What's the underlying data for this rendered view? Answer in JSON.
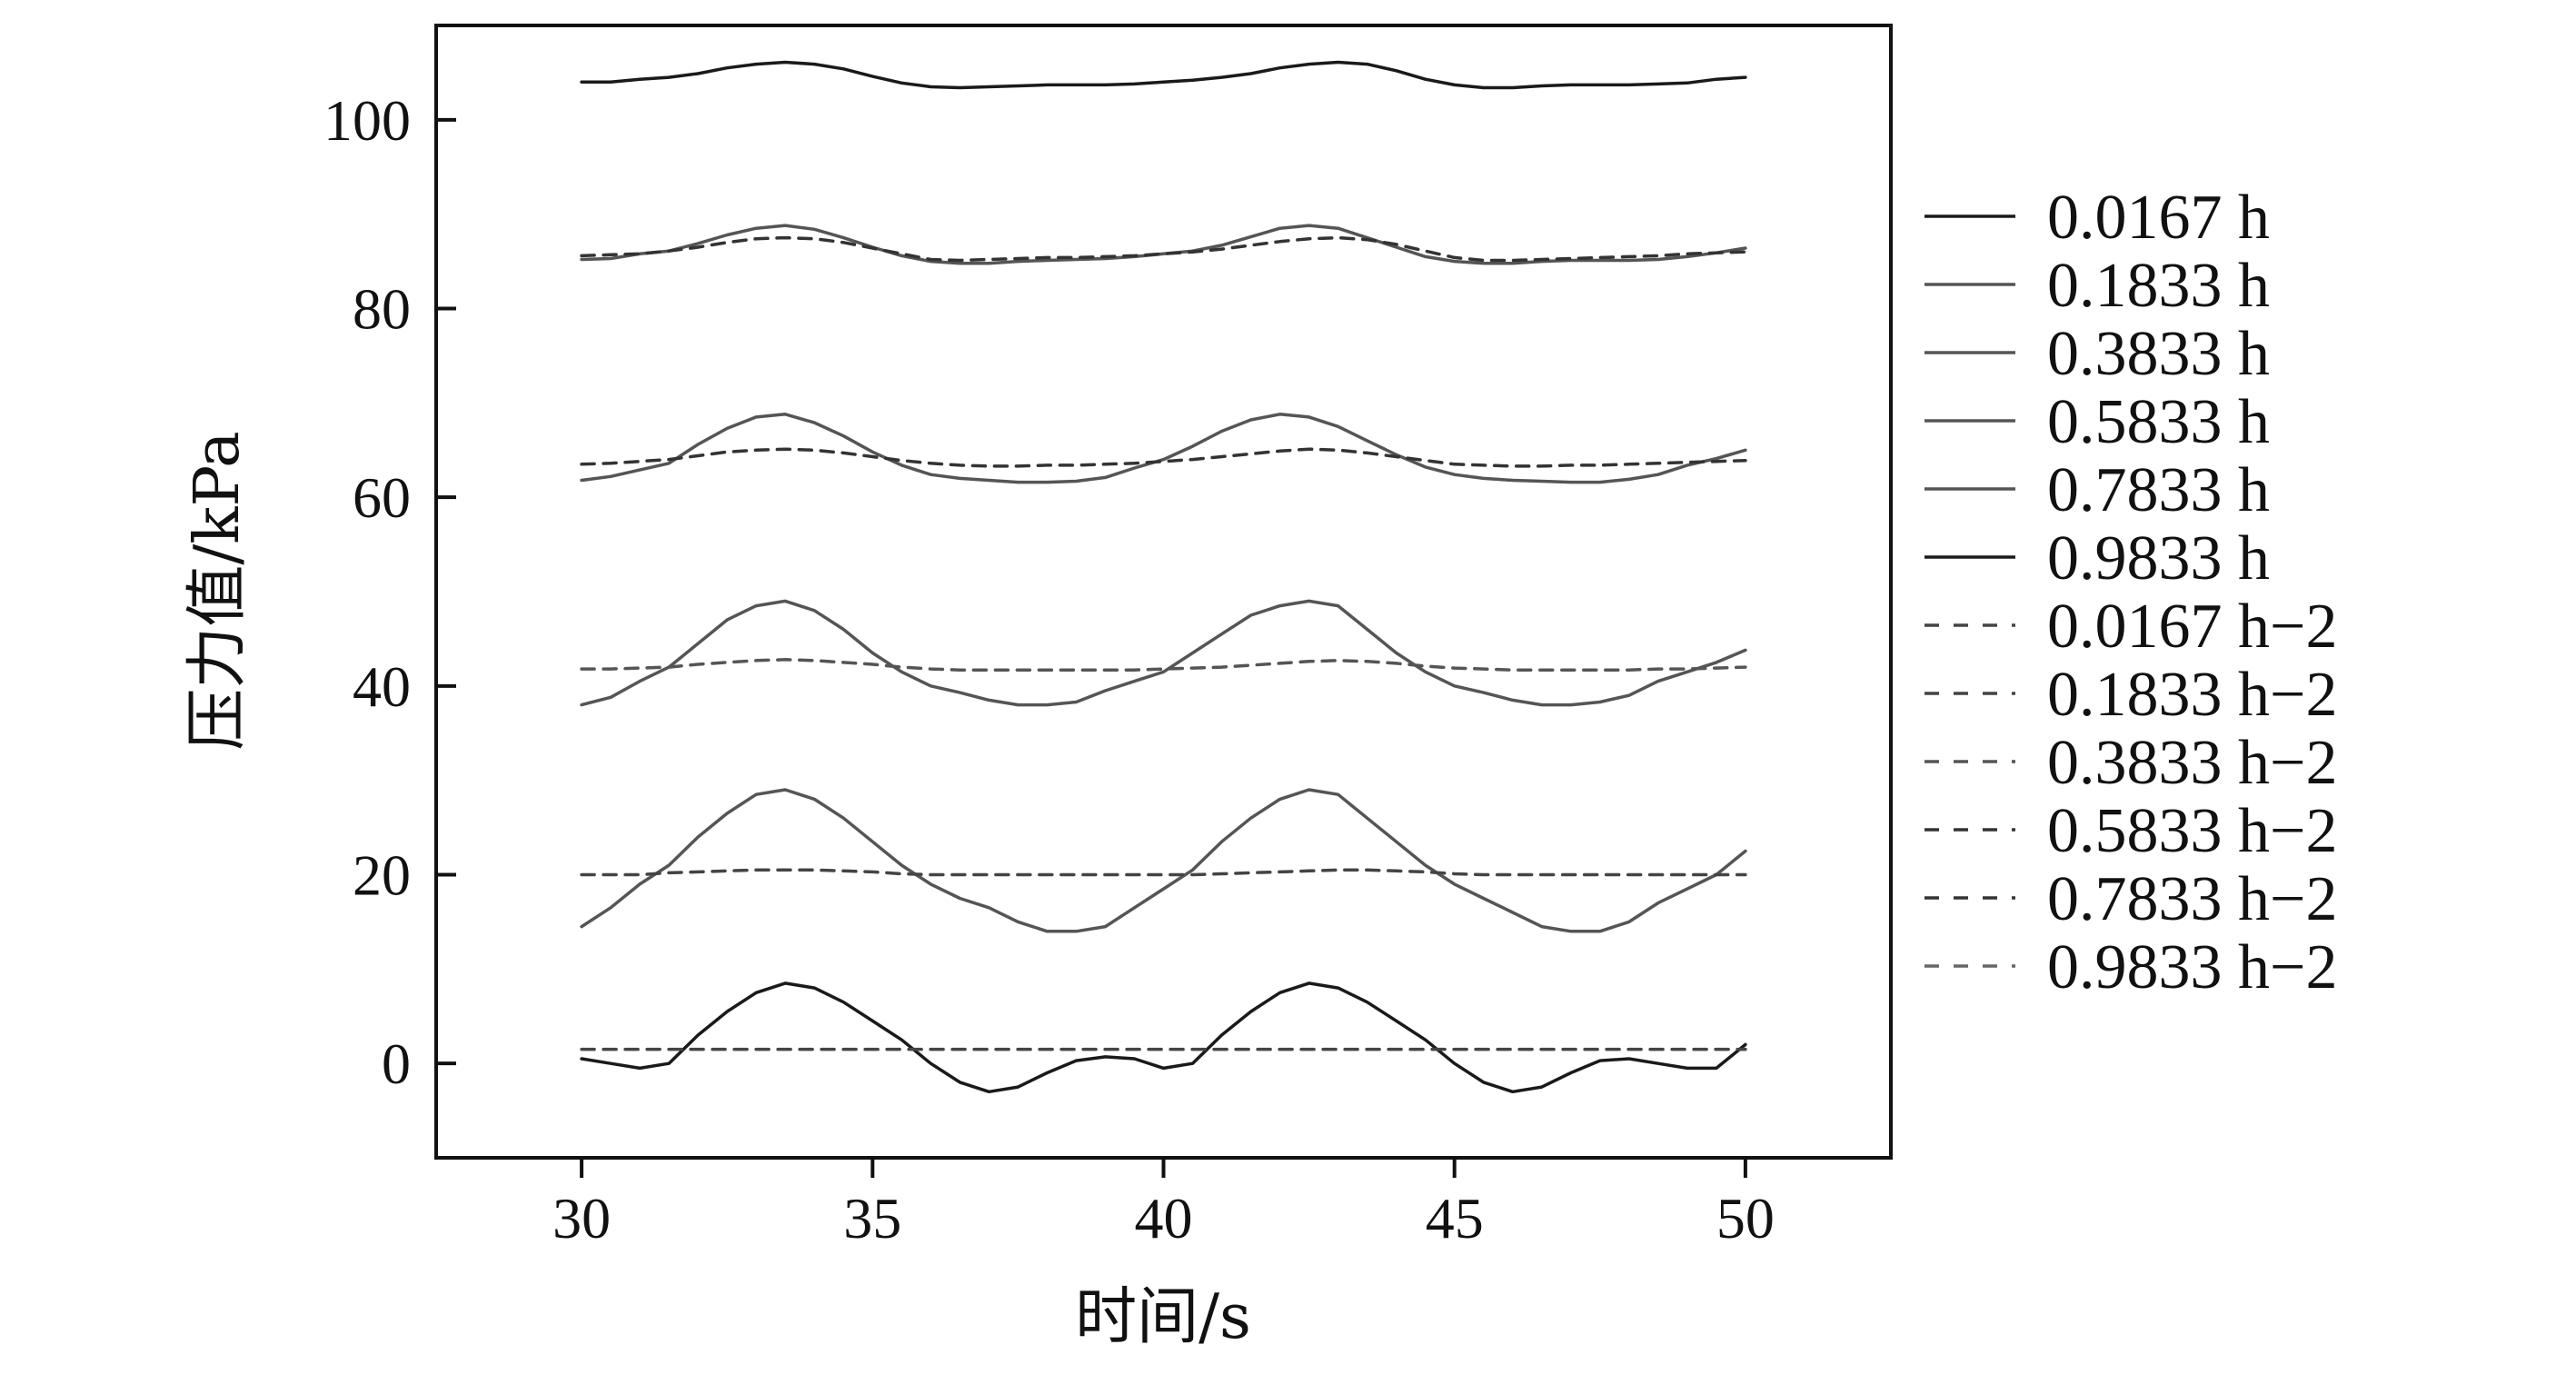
{
  "chart_data": {
    "type": "line",
    "title": "",
    "xlabel": "时间/s",
    "ylabel": "压力值/kPa",
    "xlim": [
      27.5,
      52.5
    ],
    "ylim": [
      -10,
      110
    ],
    "xticks": [
      30,
      35,
      40,
      45,
      50
    ],
    "yticks": [
      0,
      20,
      40,
      60,
      80,
      100
    ],
    "xtick_labels": [
      "30",
      "35",
      "40",
      "45",
      "50"
    ],
    "ytick_labels": [
      "0",
      "20",
      "40",
      "60",
      "80",
      "100"
    ],
    "grid": false,
    "legend_position": "outside-right",
    "x": [
      30,
      30.5,
      31,
      31.5,
      32,
      32.5,
      33,
      33.5,
      34,
      34.5,
      35,
      35.5,
      36,
      36.5,
      37,
      37.5,
      38,
      38.5,
      39,
      39.5,
      40,
      40.5,
      41,
      41.5,
      42,
      42.5,
      43,
      43.5,
      44,
      44.5,
      45,
      45.5,
      46,
      46.5,
      47,
      47.5,
      48,
      48.5,
      49,
      49.5,
      50
    ],
    "series": [
      {
        "name": "0.0167 h",
        "style": "solid",
        "color": "#1a1a1a",
        "values": [
          0.5,
          0,
          -0.5,
          0,
          3,
          5.5,
          7.5,
          8.5,
          8,
          6.5,
          4.5,
          2.5,
          0,
          -2,
          -3,
          -2.5,
          -1,
          0.3,
          0.7,
          0.5,
          -0.5,
          0,
          3,
          5.5,
          7.5,
          8.5,
          8,
          6.5,
          4.5,
          2.5,
          0,
          -2,
          -3,
          -2.5,
          -1,
          0.3,
          0.5,
          0,
          -0.5,
          -0.5,
          2
        ]
      },
      {
        "name": "0.1833 h",
        "style": "solid",
        "color": "#555555",
        "values": [
          14.5,
          16.5,
          19,
          21,
          24,
          26.5,
          28.5,
          29,
          28,
          26,
          23.5,
          21,
          19,
          17.5,
          16.5,
          15,
          14,
          14,
          14.5,
          16.5,
          18.5,
          20.5,
          23.5,
          26,
          28,
          29,
          28.5,
          26,
          23.5,
          21,
          19,
          17.5,
          16,
          14.5,
          14,
          14,
          15,
          17,
          18.5,
          20,
          22.5
        ]
      },
      {
        "name": "0.3833 h",
        "style": "solid",
        "color": "#555555",
        "values": [
          38,
          38.8,
          40.5,
          42,
          44.5,
          47,
          48.5,
          49,
          48,
          46,
          43.5,
          41.5,
          40,
          39.3,
          38.5,
          38,
          38,
          38.3,
          39.5,
          40.5,
          41.5,
          43.5,
          45.5,
          47.5,
          48.5,
          49,
          48.5,
          46,
          43.5,
          41.5,
          40,
          39.3,
          38.5,
          38,
          38,
          38.3,
          39,
          40.5,
          41.5,
          42.5,
          43.8
        ]
      },
      {
        "name": "0.5833 h",
        "style": "solid",
        "color": "#555555",
        "values": [
          61.8,
          62.2,
          62.9,
          63.6,
          65.6,
          67.3,
          68.5,
          68.8,
          67.9,
          66.5,
          64.8,
          63.4,
          62.4,
          62,
          61.8,
          61.6,
          61.6,
          61.7,
          62.1,
          63.1,
          64,
          65.4,
          67,
          68.2,
          68.8,
          68.5,
          67.5,
          66,
          64.5,
          63.2,
          62.4,
          62,
          61.8,
          61.7,
          61.6,
          61.6,
          61.9,
          62.4,
          63.4,
          64.1,
          65
        ]
      },
      {
        "name": "0.7833 h",
        "style": "solid",
        "color": "#555555",
        "values": [
          85.2,
          85.3,
          85.8,
          86.1,
          86.9,
          87.8,
          88.5,
          88.8,
          88.4,
          87.5,
          86.5,
          85.6,
          85,
          84.8,
          84.8,
          85,
          85.1,
          85.2,
          85.3,
          85.5,
          85.8,
          86.1,
          86.7,
          87.6,
          88.5,
          88.8,
          88.5,
          87.5,
          86.5,
          85.5,
          85,
          84.8,
          84.8,
          85,
          85.1,
          85.1,
          85.1,
          85.2,
          85.5,
          85.9,
          86.4
        ]
      },
      {
        "name": "0.9833 h",
        "style": "solid",
        "color": "#1a1a1a",
        "values": [
          104,
          104,
          104.3,
          104.5,
          104.9,
          105.5,
          105.9,
          106.1,
          105.9,
          105.4,
          104.6,
          103.9,
          103.5,
          103.4,
          103.5,
          103.6,
          103.7,
          103.7,
          103.7,
          103.8,
          104,
          104.2,
          104.5,
          104.9,
          105.5,
          105.9,
          106.1,
          105.9,
          105.2,
          104.3,
          103.7,
          103.4,
          103.4,
          103.6,
          103.7,
          103.7,
          103.7,
          103.8,
          103.9,
          104.3,
          104.5
        ]
      },
      {
        "name": "0.0167 h−2",
        "style": "dashed",
        "color": "#444444",
        "values": [
          1.5,
          1.5,
          1.5,
          1.5,
          1.5,
          1.5,
          1.5,
          1.5,
          1.5,
          1.5,
          1.5,
          1.5,
          1.5,
          1.5,
          1.5,
          1.5,
          1.5,
          1.5,
          1.5,
          1.5,
          1.5,
          1.5,
          1.5,
          1.5,
          1.5,
          1.5,
          1.5,
          1.5,
          1.5,
          1.5,
          1.5,
          1.5,
          1.5,
          1.5,
          1.5,
          1.5,
          1.5,
          1.5,
          1.5,
          1.5,
          1.5
        ]
      },
      {
        "name": "0.1833 h−2",
        "style": "dashed",
        "color": "#444444",
        "values": [
          20,
          20,
          20,
          20.2,
          20.3,
          20.4,
          20.5,
          20.5,
          20.5,
          20.4,
          20.3,
          20.1,
          20,
          20,
          20,
          20,
          20,
          20,
          20,
          20,
          20,
          20,
          20.1,
          20.2,
          20.3,
          20.4,
          20.5,
          20.5,
          20.4,
          20.3,
          20.1,
          20,
          20,
          20,
          20,
          20,
          20,
          20,
          20,
          20,
          20
        ]
      },
      {
        "name": "0.3833 h−2",
        "style": "dashed",
        "color": "#555555",
        "values": [
          41.8,
          41.8,
          41.9,
          42,
          42.3,
          42.5,
          42.7,
          42.8,
          42.7,
          42.5,
          42.3,
          42,
          41.8,
          41.7,
          41.7,
          41.7,
          41.7,
          41.7,
          41.7,
          41.7,
          41.8,
          41.9,
          42,
          42.2,
          42.4,
          42.6,
          42.7,
          42.6,
          42.4,
          42.1,
          41.9,
          41.8,
          41.7,
          41.7,
          41.7,
          41.7,
          41.7,
          41.8,
          41.8,
          41.9,
          42
        ]
      },
      {
        "name": "0.5833 h−2",
        "style": "dashed",
        "color": "#333333",
        "values": [
          63.5,
          63.6,
          63.8,
          64,
          64.4,
          64.8,
          65,
          65.1,
          65,
          64.7,
          64.3,
          63.9,
          63.6,
          63.4,
          63.3,
          63.3,
          63.4,
          63.4,
          63.5,
          63.6,
          63.8,
          64,
          64.3,
          64.6,
          64.9,
          65.1,
          65,
          64.7,
          64.3,
          63.9,
          63.5,
          63.4,
          63.3,
          63.3,
          63.4,
          63.4,
          63.5,
          63.6,
          63.7,
          63.8,
          63.9
        ]
      },
      {
        "name": "0.7833 h−2",
        "style": "dashed",
        "color": "#333333",
        "values": [
          85.6,
          85.7,
          85.8,
          86.1,
          86.5,
          87,
          87.4,
          87.5,
          87.4,
          87,
          86.4,
          85.8,
          85.2,
          85.1,
          85.2,
          85.3,
          85.4,
          85.4,
          85.5,
          85.6,
          85.8,
          86,
          86.3,
          86.7,
          87.1,
          87.4,
          87.5,
          87.3,
          86.8,
          86.1,
          85.4,
          85.1,
          85.1,
          85.2,
          85.3,
          85.4,
          85.5,
          85.6,
          85.8,
          85.9,
          86
        ]
      },
      {
        "name": "0.9833 h−2",
        "style": "dashed",
        "color": "#666666",
        "values": [
          null,
          null,
          null,
          null,
          null,
          null,
          null,
          null,
          null,
          null,
          null,
          null,
          null,
          null,
          null,
          null,
          null,
          null,
          null,
          null,
          null,
          null,
          null,
          null,
          null,
          null,
          null,
          null,
          null,
          null,
          null,
          null,
          null,
          null,
          null,
          null,
          null,
          null,
          null,
          null,
          null
        ]
      }
    ]
  }
}
